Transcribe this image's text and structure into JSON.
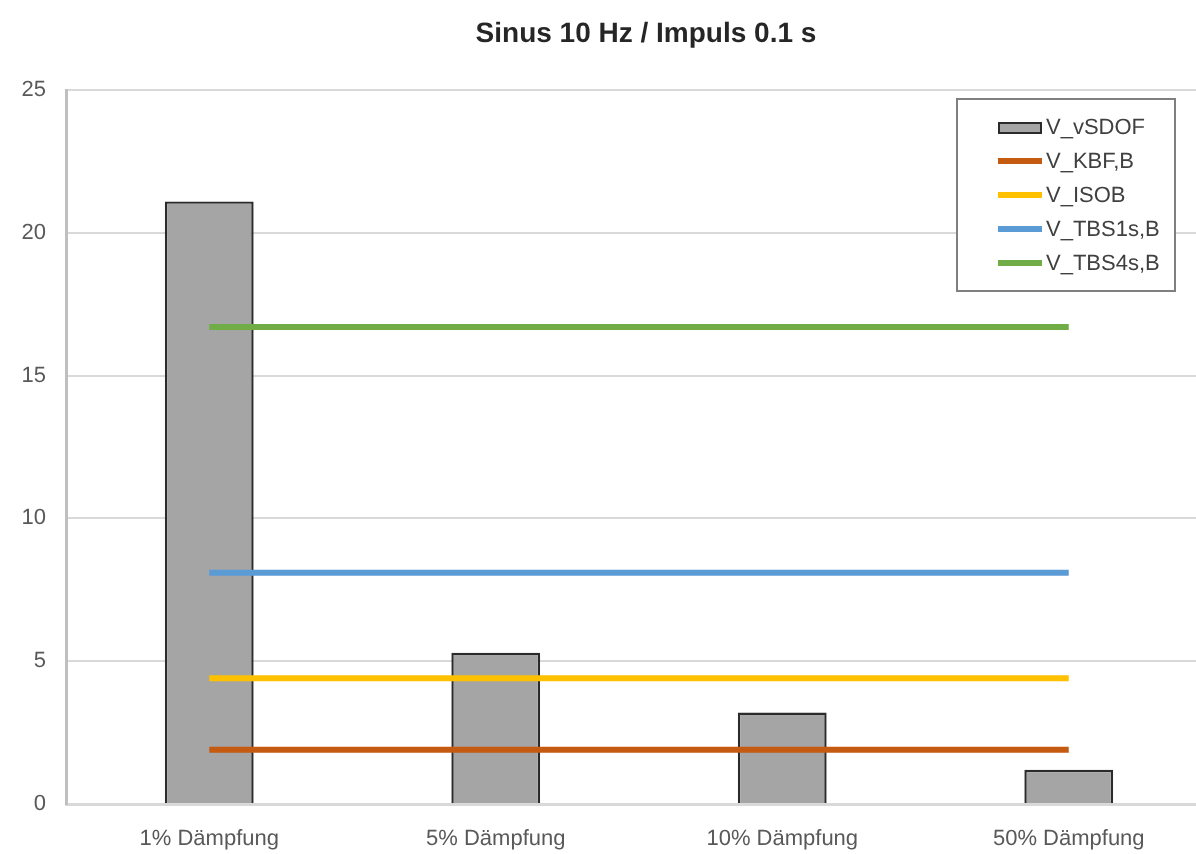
{
  "chart_data": {
    "type": "bar",
    "title": "Sinus 10 Hz / Impuls 0.1 s",
    "categories": [
      "1% Dämpfung",
      "5% Dämpfung",
      "10% Dämpfung",
      "50% Dämpfung"
    ],
    "series": [
      {
        "name": "V_vSDOF",
        "color": "#a5a5a5",
        "values": [
          21.1,
          5.3,
          3.2,
          1.2
        ]
      },
      {
        "name": "V_KBF,B",
        "type": "line",
        "color": "#c55a11",
        "values": [
          1.9,
          1.9,
          1.9,
          1.9
        ]
      },
      {
        "name": "V_ISOB",
        "type": "line",
        "color": "#ffc000",
        "values": [
          4.4,
          4.4,
          4.4,
          4.4
        ]
      },
      {
        "name": "V_TBS1s,B",
        "type": "line",
        "color": "#5b9bd5",
        "values": [
          8.1,
          8.1,
          8.1,
          8.1
        ]
      },
      {
        "name": "V_TBS4s,B",
        "type": "line",
        "color": "#70ad47",
        "values": [
          16.7,
          16.7,
          16.7,
          16.7
        ]
      }
    ],
    "ylim": [
      0,
      25
    ],
    "yticks": [
      0,
      5,
      10,
      15,
      20,
      25
    ],
    "grid": "y",
    "legend": "top right"
  }
}
